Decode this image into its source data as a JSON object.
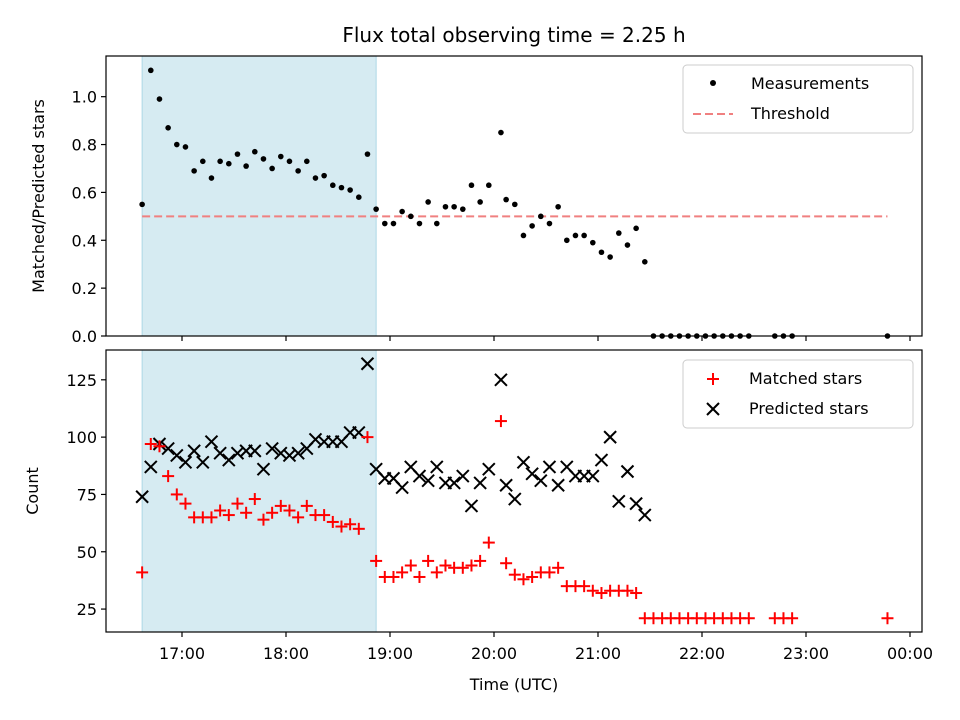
{
  "chart_data": {
    "title": "Flux total observing time = 2.25 h",
    "xlabel": "Time (UTC)",
    "shaded_interval": [
      "16:37",
      "18:52"
    ],
    "x_ticks": [
      "17:00",
      "18:00",
      "19:00",
      "20:00",
      "21:00",
      "22:00",
      "23:00",
      "00:00"
    ],
    "top": {
      "type": "scatter",
      "ylabel": "Matched/Predicted stars",
      "ylim": [
        0,
        1.17
      ],
      "y_ticks": [
        "0.0",
        "0.2",
        "0.4",
        "0.6",
        "0.8",
        "1.0"
      ],
      "threshold": 0.5,
      "legend": [
        "Measurements",
        "Threshold"
      ],
      "threshold_color": "#f08080",
      "measurements": [
        [
          "16:37",
          0.55
        ],
        [
          "16:42",
          1.11
        ],
        [
          "16:47",
          0.99
        ],
        [
          "16:52",
          0.87
        ],
        [
          "16:57",
          0.8
        ],
        [
          "17:02",
          0.79
        ],
        [
          "17:07",
          0.69
        ],
        [
          "17:12",
          0.73
        ],
        [
          "17:17",
          0.66
        ],
        [
          "17:22",
          0.73
        ],
        [
          "17:27",
          0.72
        ],
        [
          "17:32",
          0.76
        ],
        [
          "17:37",
          0.71
        ],
        [
          "17:42",
          0.77
        ],
        [
          "17:47",
          0.74
        ],
        [
          "17:52",
          0.7
        ],
        [
          "17:57",
          0.75
        ],
        [
          "18:02",
          0.73
        ],
        [
          "18:07",
          0.69
        ],
        [
          "18:12",
          0.73
        ],
        [
          "18:17",
          0.66
        ],
        [
          "18:22",
          0.67
        ],
        [
          "18:27",
          0.63
        ],
        [
          "18:32",
          0.62
        ],
        [
          "18:37",
          0.61
        ],
        [
          "18:42",
          0.58
        ],
        [
          "18:47",
          0.76
        ],
        [
          "18:52",
          0.53
        ],
        [
          "18:57",
          0.47
        ],
        [
          "19:02",
          0.47
        ],
        [
          "19:07",
          0.52
        ],
        [
          "19:12",
          0.5
        ],
        [
          "19:17",
          0.47
        ],
        [
          "19:22",
          0.56
        ],
        [
          "19:27",
          0.47
        ],
        [
          "19:32",
          0.54
        ],
        [
          "19:37",
          0.54
        ],
        [
          "19:42",
          0.53
        ],
        [
          "19:47",
          0.63
        ],
        [
          "19:52",
          0.56
        ],
        [
          "19:57",
          0.63
        ],
        [
          "20:04",
          0.85
        ],
        [
          "20:07",
          0.57
        ],
        [
          "20:12",
          0.55
        ],
        [
          "20:17",
          0.42
        ],
        [
          "20:22",
          0.46
        ],
        [
          "20:27",
          0.5
        ],
        [
          "20:32",
          0.47
        ],
        [
          "20:37",
          0.54
        ],
        [
          "20:42",
          0.4
        ],
        [
          "20:47",
          0.42
        ],
        [
          "20:52",
          0.42
        ],
        [
          "20:57",
          0.39
        ],
        [
          "21:02",
          0.35
        ],
        [
          "21:07",
          0.33
        ],
        [
          "21:12",
          0.43
        ],
        [
          "21:17",
          0.38
        ],
        [
          "21:22",
          0.45
        ],
        [
          "21:27",
          0.31
        ],
        [
          "21:32",
          0.0
        ],
        [
          "21:37",
          0.0
        ],
        [
          "21:42",
          0.0
        ],
        [
          "21:47",
          0.0
        ],
        [
          "21:52",
          0.0
        ],
        [
          "21:57",
          0.0
        ],
        [
          "22:02",
          0.0
        ],
        [
          "22:07",
          0.0
        ],
        [
          "22:12",
          0.0
        ],
        [
          "22:17",
          0.0
        ],
        [
          "22:22",
          0.0
        ],
        [
          "22:27",
          0.0
        ],
        [
          "22:42",
          0.0
        ],
        [
          "22:47",
          0.0
        ],
        [
          "22:52",
          0.0
        ],
        [
          "23:47",
          0.0
        ]
      ]
    },
    "bottom": {
      "type": "scatter",
      "ylabel": "Count",
      "ylim": [
        15,
        138
      ],
      "y_ticks": [
        "25",
        "50",
        "75",
        "100",
        "125"
      ],
      "legend": [
        "Matched stars",
        "Predicted stars"
      ],
      "matched_color": "#ff0000",
      "predicted_color": "#000000",
      "matched": [
        [
          "16:37",
          41
        ],
        [
          "16:42",
          97
        ],
        [
          "16:47",
          96
        ],
        [
          "16:52",
          83
        ],
        [
          "16:57",
          75
        ],
        [
          "17:02",
          71
        ],
        [
          "17:07",
          65
        ],
        [
          "17:12",
          65
        ],
        [
          "17:17",
          65
        ],
        [
          "17:22",
          68
        ],
        [
          "17:27",
          66
        ],
        [
          "17:32",
          71
        ],
        [
          "17:37",
          67
        ],
        [
          "17:42",
          73
        ],
        [
          "17:47",
          64
        ],
        [
          "17:52",
          67
        ],
        [
          "17:57",
          70
        ],
        [
          "18:02",
          68
        ],
        [
          "18:07",
          65
        ],
        [
          "18:12",
          70
        ],
        [
          "18:17",
          66
        ],
        [
          "18:22",
          66
        ],
        [
          "18:27",
          63
        ],
        [
          "18:32",
          61
        ],
        [
          "18:37",
          62
        ],
        [
          "18:42",
          60
        ],
        [
          "18:47",
          100
        ],
        [
          "18:52",
          46
        ],
        [
          "18:57",
          39
        ],
        [
          "19:02",
          39
        ],
        [
          "19:07",
          41
        ],
        [
          "19:12",
          44
        ],
        [
          "19:17",
          39
        ],
        [
          "19:22",
          46
        ],
        [
          "19:27",
          41
        ],
        [
          "19:32",
          44
        ],
        [
          "19:37",
          43
        ],
        [
          "19:42",
          43
        ],
        [
          "19:47",
          44
        ],
        [
          "19:52",
          46
        ],
        [
          "19:57",
          54
        ],
        [
          "20:04",
          107
        ],
        [
          "20:07",
          45
        ],
        [
          "20:12",
          40
        ],
        [
          "20:17",
          38
        ],
        [
          "20:22",
          39
        ],
        [
          "20:27",
          41
        ],
        [
          "20:32",
          41
        ],
        [
          "20:37",
          43
        ],
        [
          "20:42",
          35
        ],
        [
          "20:47",
          35
        ],
        [
          "20:52",
          35
        ],
        [
          "20:57",
          33
        ],
        [
          "21:02",
          32
        ],
        [
          "21:07",
          33
        ],
        [
          "21:12",
          33
        ],
        [
          "21:17",
          33
        ],
        [
          "21:22",
          32
        ],
        [
          "21:27",
          21
        ],
        [
          "21:32",
          21
        ],
        [
          "21:37",
          21
        ],
        [
          "21:42",
          21
        ],
        [
          "21:47",
          21
        ],
        [
          "21:52",
          21
        ],
        [
          "21:57",
          21
        ],
        [
          "22:02",
          21
        ],
        [
          "22:07",
          21
        ],
        [
          "22:12",
          21
        ],
        [
          "22:17",
          21
        ],
        [
          "22:22",
          21
        ],
        [
          "22:27",
          21
        ],
        [
          "22:42",
          21
        ],
        [
          "22:47",
          21
        ],
        [
          "22:52",
          21
        ],
        [
          "23:47",
          21
        ]
      ],
      "predicted": [
        [
          "16:37",
          74
        ],
        [
          "16:42",
          87
        ],
        [
          "16:47",
          97
        ],
        [
          "16:52",
          95
        ],
        [
          "16:57",
          92
        ],
        [
          "17:02",
          89
        ],
        [
          "17:07",
          94
        ],
        [
          "17:12",
          89
        ],
        [
          "17:17",
          98
        ],
        [
          "17:22",
          93
        ],
        [
          "17:27",
          90
        ],
        [
          "17:32",
          93
        ],
        [
          "17:37",
          94
        ],
        [
          "17:42",
          94
        ],
        [
          "17:47",
          86
        ],
        [
          "17:52",
          95
        ],
        [
          "17:57",
          93
        ],
        [
          "18:02",
          92
        ],
        [
          "18:07",
          93
        ],
        [
          "18:12",
          95
        ],
        [
          "18:17",
          99
        ],
        [
          "18:22",
          98
        ],
        [
          "18:27",
          98
        ],
        [
          "18:32",
          98
        ],
        [
          "18:37",
          102
        ],
        [
          "18:42",
          102
        ],
        [
          "18:47",
          132
        ],
        [
          "18:52",
          86
        ],
        [
          "18:57",
          82
        ],
        [
          "19:02",
          82
        ],
        [
          "19:07",
          78
        ],
        [
          "19:12",
          87
        ],
        [
          "19:17",
          83
        ],
        [
          "19:22",
          81
        ],
        [
          "19:27",
          87
        ],
        [
          "19:32",
          80
        ],
        [
          "19:37",
          80
        ],
        [
          "19:42",
          83
        ],
        [
          "19:47",
          70
        ],
        [
          "19:52",
          80
        ],
        [
          "19:57",
          86
        ],
        [
          "20:04",
          125
        ],
        [
          "20:07",
          79
        ],
        [
          "20:12",
          73
        ],
        [
          "20:17",
          89
        ],
        [
          "20:22",
          84
        ],
        [
          "20:27",
          81
        ],
        [
          "20:32",
          87
        ],
        [
          "20:37",
          79
        ],
        [
          "20:42",
          87
        ],
        [
          "20:47",
          83
        ],
        [
          "20:52",
          83
        ],
        [
          "20:57",
          83
        ],
        [
          "21:02",
          90
        ],
        [
          "21:07",
          100
        ],
        [
          "21:12",
          72
        ],
        [
          "21:17",
          85
        ],
        [
          "21:22",
          71
        ],
        [
          "21:27",
          66
        ]
      ]
    }
  }
}
